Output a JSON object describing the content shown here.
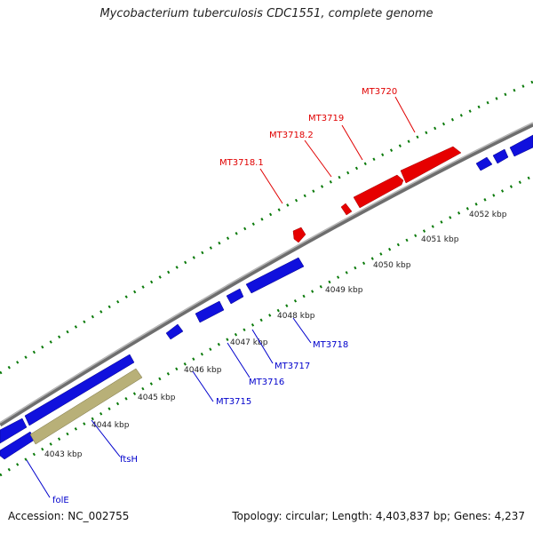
{
  "title": "Mycobacterium tuberculosis CDC1551, complete genome",
  "footer": {
    "accession": "Accession: NC_002755",
    "topology": "Topology: circular; Length: 4,403,837 bp; Genes: 4,237"
  },
  "colors": {
    "backbone": "#8a8a8a",
    "tick": "#0a7a0a",
    "forward_gene": "#e60000",
    "reverse_gene": "#1010dd",
    "highlight_gene": "#b8b078"
  },
  "axis": {
    "unit": "kbp",
    "ticks": [
      "4043 kbp",
      "4044 kbp",
      "4045 kbp",
      "4046 kbp",
      "4047 kbp",
      "4048 kbp",
      "4049 kbp",
      "4050 kbp",
      "4051 kbp",
      "4052 kbp"
    ]
  },
  "genes": [
    {
      "label": "MT3718.1",
      "strand": "+"
    },
    {
      "label": "MT3718.2",
      "strand": "+"
    },
    {
      "label": "MT3719",
      "strand": "+"
    },
    {
      "label": "MT3720",
      "strand": "+"
    },
    {
      "label": "folE",
      "strand": "-"
    },
    {
      "label": "ftsH",
      "strand": "-"
    },
    {
      "label": "MT3715",
      "strand": "-"
    },
    {
      "label": "MT3716",
      "strand": "-"
    },
    {
      "label": "MT3717",
      "strand": "-"
    },
    {
      "label": "MT3718",
      "strand": "-"
    }
  ]
}
